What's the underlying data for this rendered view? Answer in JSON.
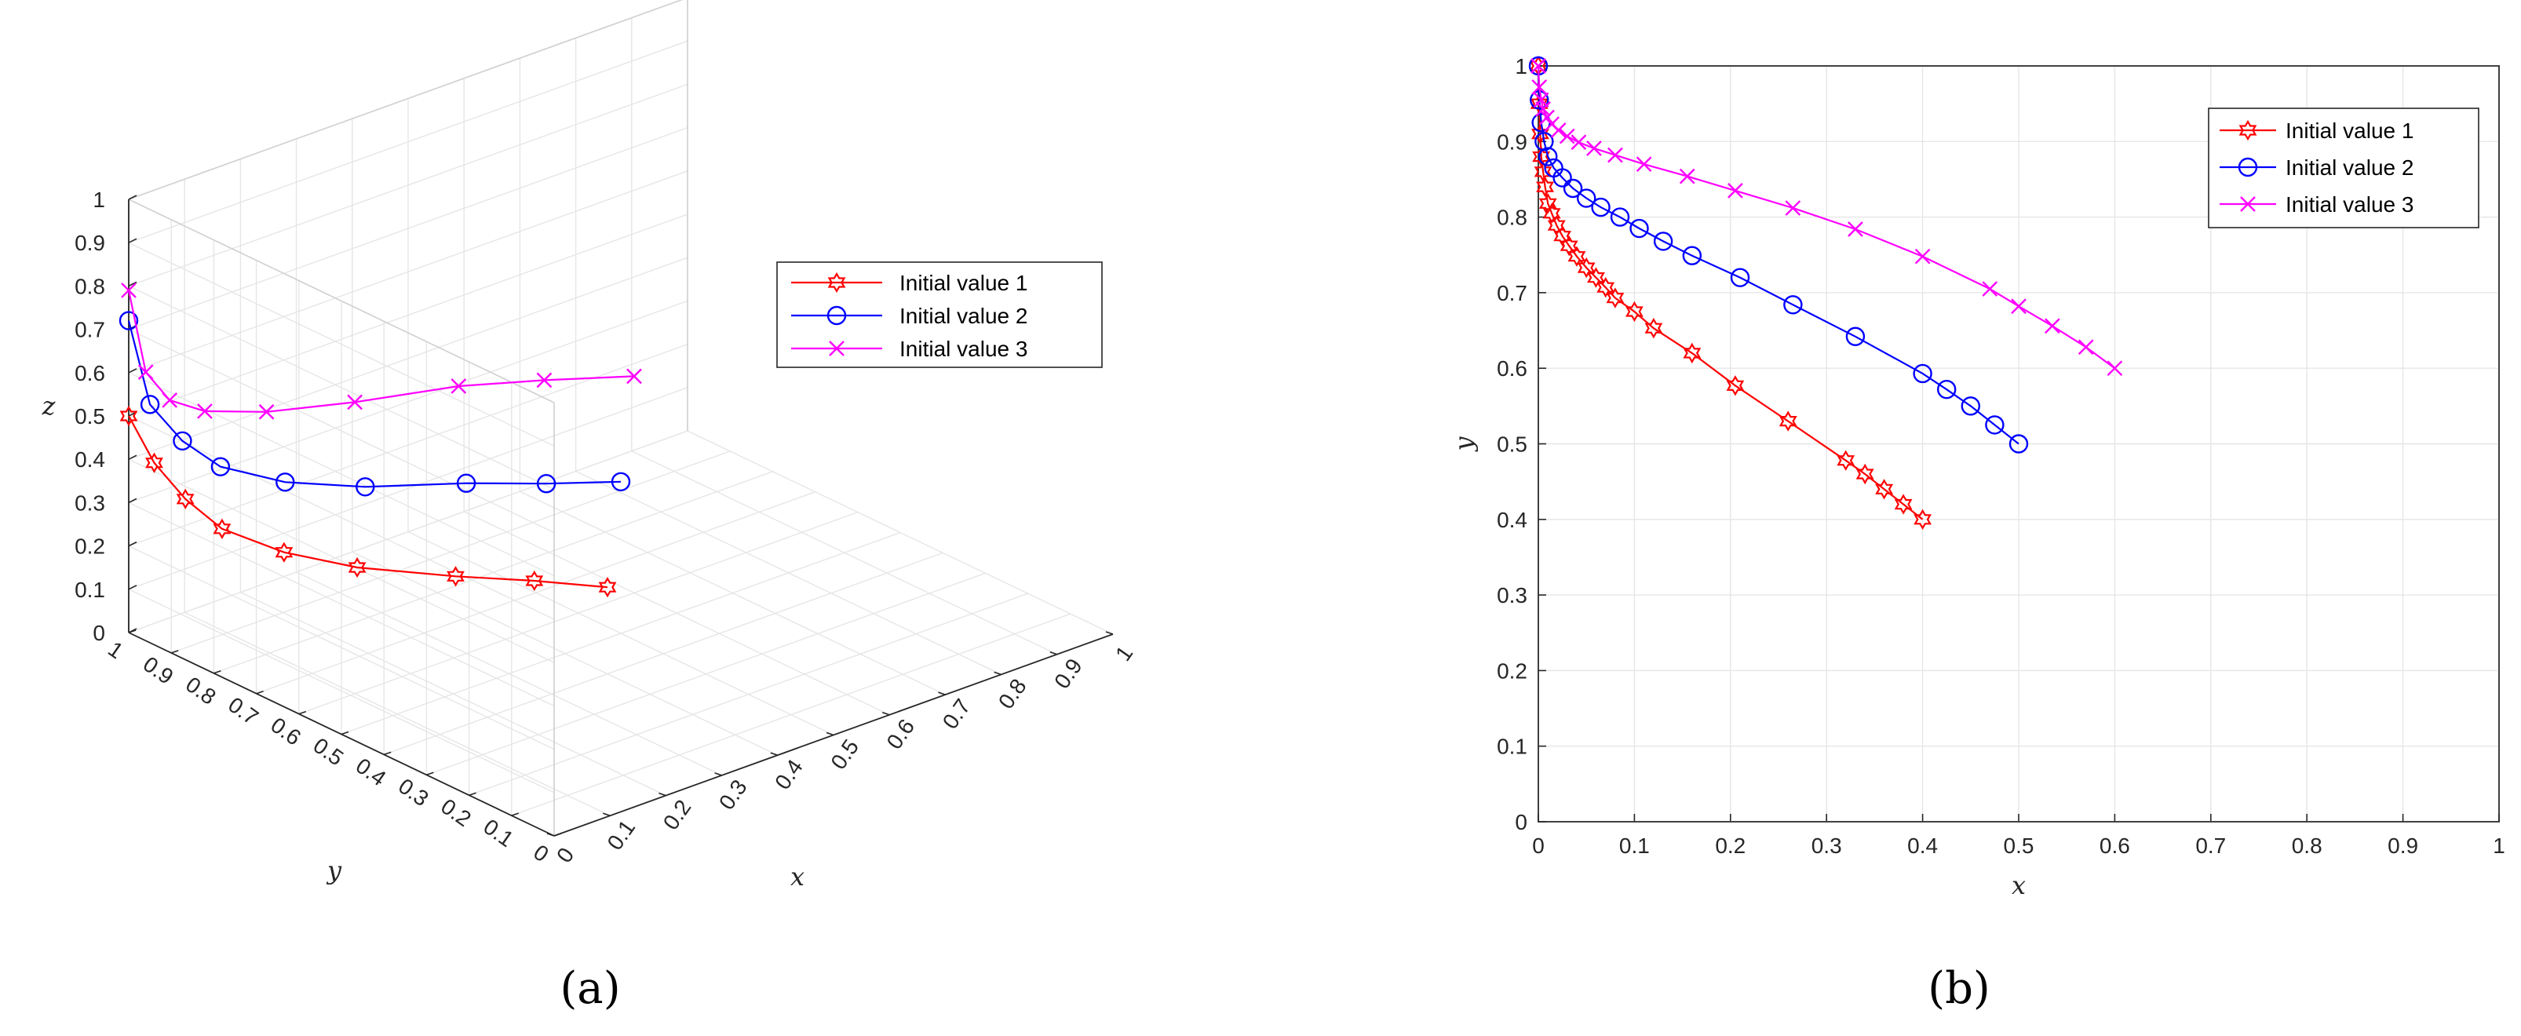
{
  "chart_data": [
    {
      "panel_label": "(a)",
      "type": "line3d",
      "xlabel": "x",
      "ylabel": "y",
      "zlabel": "z",
      "xlim": [
        0,
        1
      ],
      "ylim": [
        0,
        1
      ],
      "zlim": [
        0,
        1
      ],
      "x_ticks": [
        "0",
        "0.1",
        "0.2",
        "0.3",
        "0.4",
        "0.5",
        "0.6",
        "0.7",
        "0.8",
        "0.9",
        "1"
      ],
      "y_ticks": [
        "0",
        "0.1",
        "0.2",
        "0.3",
        "0.4",
        "0.5",
        "0.6",
        "0.7",
        "0.8",
        "0.9",
        "1"
      ],
      "z_ticks": [
        "0",
        "0.1",
        "0.2",
        "0.3",
        "0.4",
        "0.5",
        "0.6",
        "0.7",
        "0.8",
        "0.9",
        "1"
      ],
      "grid": true,
      "legend_position": "top-right",
      "series": [
        {
          "name": "Initial value 1",
          "color": "#ff0000",
          "marker": "hexagram",
          "x": [
            0.4,
            0.33,
            0.25,
            0.15,
            0.08,
            0.03,
            0.01,
            0.0,
            0.0
          ],
          "y": [
            0.4,
            0.48,
            0.56,
            0.66,
            0.74,
            0.82,
            0.88,
            0.94,
            1.0
          ],
          "z": [
            0.2,
            0.21,
            0.22,
            0.24,
            0.27,
            0.31,
            0.36,
            0.42,
            0.5
          ]
        },
        {
          "name": "Initial value 2",
          "color": "#0000ff",
          "marker": "circle",
          "x": [
            0.5,
            0.42,
            0.33,
            0.21,
            0.12,
            0.05,
            0.02,
            0.0,
            0.0
          ],
          "y": [
            0.5,
            0.57,
            0.64,
            0.72,
            0.79,
            0.85,
            0.9,
            0.95,
            1.0
          ],
          "z": [
            0.35,
            0.35,
            0.36,
            0.37,
            0.39,
            0.43,
            0.48,
            0.55,
            0.72
          ]
        },
        {
          "name": "Initial value 3",
          "color": "#ff00ff",
          "marker": "cross",
          "x": [
            0.6,
            0.5,
            0.4,
            0.26,
            0.14,
            0.06,
            0.02,
            0.0,
            0.0
          ],
          "y": [
            0.6,
            0.68,
            0.75,
            0.81,
            0.86,
            0.9,
            0.93,
            0.96,
            1.0
          ],
          "z": [
            0.5,
            0.5,
            0.5,
            0.5,
            0.51,
            0.53,
            0.56,
            0.62,
            0.79
          ]
        }
      ]
    },
    {
      "panel_label": "(b)",
      "type": "line",
      "xlabel": "x",
      "ylabel": "y",
      "xlim": [
        0,
        1
      ],
      "ylim": [
        0,
        1
      ],
      "x_ticks": [
        "0",
        "0.1",
        "0.2",
        "0.3",
        "0.4",
        "0.5",
        "0.6",
        "0.7",
        "0.8",
        "0.9",
        "1"
      ],
      "y_ticks": [
        "0",
        "0.1",
        "0.2",
        "0.3",
        "0.4",
        "0.5",
        "0.6",
        "0.7",
        "0.8",
        "0.9",
        "1"
      ],
      "grid": true,
      "legend_position": "top-right",
      "series": [
        {
          "name": "Initial value 1",
          "color": "#ff0000",
          "marker": "hexagram",
          "x": [
            0.4,
            0.38,
            0.36,
            0.34,
            0.32,
            0.26,
            0.205,
            0.16,
            0.12,
            0.1,
            0.08,
            0.07,
            0.06,
            0.05,
            0.04,
            0.032,
            0.025,
            0.019,
            0.014,
            0.01,
            0.007,
            0.005,
            0.003,
            0.002,
            0.001,
            0.0
          ],
          "y": [
            0.4,
            0.42,
            0.44,
            0.46,
            0.478,
            0.53,
            0.577,
            0.62,
            0.653,
            0.675,
            0.693,
            0.707,
            0.72,
            0.733,
            0.748,
            0.762,
            0.775,
            0.789,
            0.805,
            0.818,
            0.84,
            0.86,
            0.88,
            0.91,
            0.95,
            1.0
          ]
        },
        {
          "name": "Initial value 2",
          "color": "#0000ff",
          "marker": "circle",
          "x": [
            0.5,
            0.475,
            0.45,
            0.425,
            0.4,
            0.33,
            0.265,
            0.21,
            0.16,
            0.13,
            0.105,
            0.085,
            0.065,
            0.05,
            0.036,
            0.025,
            0.016,
            0.01,
            0.006,
            0.003,
            0.001,
            0.0
          ],
          "y": [
            0.5,
            0.525,
            0.55,
            0.572,
            0.593,
            0.642,
            0.684,
            0.72,
            0.749,
            0.768,
            0.785,
            0.8,
            0.813,
            0.825,
            0.838,
            0.852,
            0.865,
            0.88,
            0.9,
            0.925,
            0.955,
            1.0
          ]
        },
        {
          "name": "Initial value 3",
          "color": "#ff00ff",
          "marker": "cross",
          "x": [
            0.6,
            0.57,
            0.535,
            0.5,
            0.47,
            0.4,
            0.33,
            0.265,
            0.205,
            0.155,
            0.11,
            0.08,
            0.058,
            0.042,
            0.03,
            0.021,
            0.014,
            0.009,
            0.005,
            0.003,
            0.001,
            0.0
          ],
          "y": [
            0.6,
            0.628,
            0.656,
            0.682,
            0.705,
            0.748,
            0.784,
            0.812,
            0.835,
            0.854,
            0.87,
            0.882,
            0.891,
            0.899,
            0.907,
            0.915,
            0.923,
            0.932,
            0.943,
            0.955,
            0.972,
            1.0
          ]
        }
      ]
    }
  ]
}
